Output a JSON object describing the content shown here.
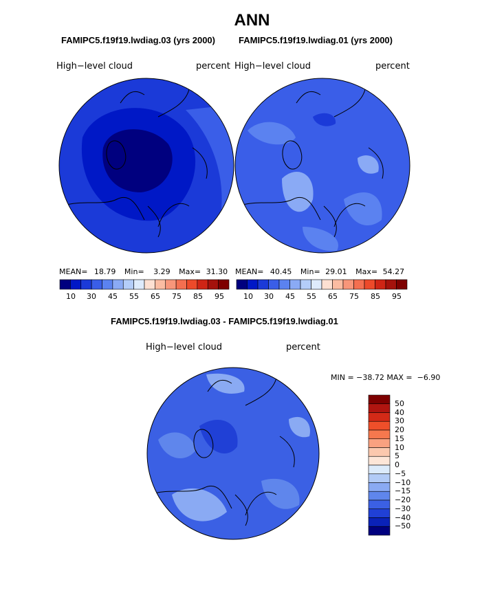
{
  "page": {
    "title": "ANN",
    "subtitle_left": "FAMIPC5.f19f19.lwdiag.03 (yrs 2000)",
    "subtitle_right": "FAMIPC5.f19f19.lwdiag.01 (yrs 2000)",
    "diff_title": "FAMIPC5.f19f19.lwdiag.03 - FAMIPC5.f19f19.lwdiag.01"
  },
  "colors": {
    "abs_scale": [
      "#00007f",
      "#0018c6",
      "#1b3ad8",
      "#3a5ee8",
      "#5b82f0",
      "#8aaaf5",
      "#b4cdf9",
      "#deebfc",
      "#fde0d2",
      "#fbbca2",
      "#f8967a",
      "#f46f50",
      "#ed4a2a",
      "#cf2515",
      "#a5120c",
      "#7e0000"
    ],
    "diff_scale": [
      "#7e0000",
      "#b01510",
      "#d32a17",
      "#ef4f2a",
      "#f6784e",
      "#f9a180",
      "#fbc8ae",
      "#fde6d8",
      "#dcebfb",
      "#b2cbf6",
      "#8aaaf3",
      "#5f86ec",
      "#3b60e4",
      "#2040d6",
      "#0a22b8",
      "#00007f"
    ],
    "land_outline": "#000000"
  },
  "chart_data": [
    {
      "type": "heatmap",
      "projection": "north-polar-stereographic",
      "variable": "High-level cloud",
      "units": "percent",
      "case": "FAMIPC5.f19f19.lwdiag.03 (yrs 2000)",
      "mean": "18.79",
      "min": "3.29",
      "max": "31.30",
      "colorbar_ticks": [
        "10",
        "30",
        "45",
        "55",
        "65",
        "75",
        "85",
        "95"
      ],
      "regions": [
        {
          "name": "central-arctic-minimum",
          "value": 5
        },
        {
          "name": "surrounding-arctic",
          "value": 10
        },
        {
          "name": "subpolar-band",
          "value": 20
        },
        {
          "name": "mid-latitudes",
          "value": 28
        }
      ]
    },
    {
      "type": "heatmap",
      "projection": "north-polar-stereographic",
      "variable": "High-level cloud",
      "units": "percent",
      "case": "FAMIPC5.f19f19.lwdiag.01 (yrs 2000)",
      "mean": "40.45",
      "min": "29.01",
      "max": "54.27",
      "colorbar_ticks": [
        "10",
        "30",
        "45",
        "55",
        "65",
        "75",
        "85",
        "95"
      ],
      "regions": [
        {
          "name": "arctic-background",
          "value": 40
        },
        {
          "name": "greenland-canada-maxima",
          "value": 50
        },
        {
          "name": "eurasia-patches",
          "value": 45
        }
      ]
    },
    {
      "type": "heatmap",
      "projection": "north-polar-stereographic",
      "variable": "High-level cloud",
      "units": "percent",
      "case": "FAMIPC5.f19f19.lwdiag.03 - FAMIPC5.f19f19.lwdiag.01",
      "min": "-38.72",
      "max": "-6.90",
      "colorbar_ticks": [
        "50",
        "40",
        "30",
        "20",
        "15",
        "10",
        "5",
        "0",
        "-5",
        "-10",
        "-15",
        "-20",
        "-30",
        "-40",
        "-50"
      ],
      "regions": [
        {
          "name": "arctic-background",
          "value": -25
        },
        {
          "name": "greenland-maxima-loss",
          "value": -35
        },
        {
          "name": "subpolar-patches",
          "value": -15
        }
      ]
    }
  ],
  "labels": {
    "map_left": {
      "variable": "High−level cloud",
      "units": "percent",
      "mean_label": "MEAN=",
      "min_label": "Min=",
      "max_label": "Max="
    },
    "map_right": {
      "variable": "High−level cloud",
      "units": "percent",
      "mean_label": "MEAN=",
      "min_label": "Min=",
      "max_label": "Max="
    },
    "map_diff": {
      "variable": "High−level cloud",
      "units": "percent",
      "minmax_text": "MIN = −38.72 MAX =  −6.90"
    }
  }
}
